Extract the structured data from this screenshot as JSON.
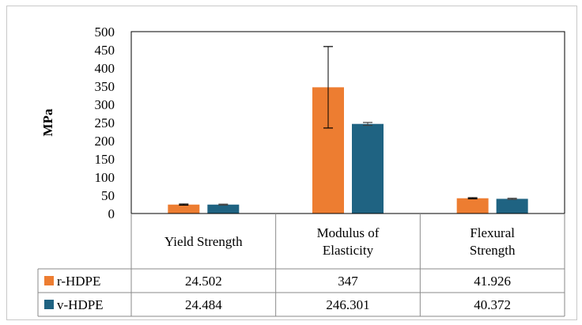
{
  "chart_data": {
    "type": "bar",
    "title": "",
    "xlabel": "",
    "ylabel": "MPa",
    "ylim": [
      0,
      500
    ],
    "yticks": [
      0,
      50,
      100,
      150,
      200,
      250,
      300,
      350,
      400,
      450,
      500
    ],
    "categories": [
      [
        "Yield Strength"
      ],
      [
        "Modulus of",
        "Elasticity"
      ],
      [
        "Flexural",
        "Strength"
      ]
    ],
    "grid": false,
    "legend": "data-table",
    "series": [
      {
        "name": "r-HDPE",
        "color": "#ED7D31",
        "values": [
          24.502,
          347,
          41.926
        ],
        "errors": [
          1.5,
          112,
          1.5
        ]
      },
      {
        "name": "v-HDPE",
        "color": "#1F6382",
        "values": [
          24.484,
          246.301,
          40.372
        ],
        "errors": [
          1.2,
          4,
          1.5
        ]
      }
    ],
    "table": {
      "rows": [
        {
          "label": "r-HDPE",
          "cells": [
            "24.502",
            "347",
            "41.926"
          ]
        },
        {
          "label": "v-HDPE",
          "cells": [
            "24.484",
            "246.301",
            "40.372"
          ]
        }
      ]
    }
  }
}
